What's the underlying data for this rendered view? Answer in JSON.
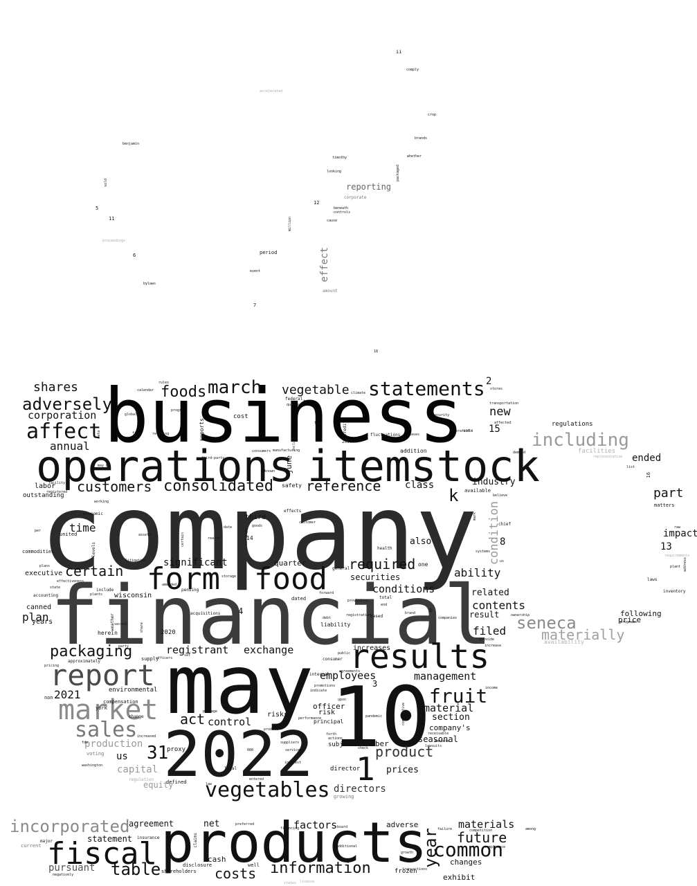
{
  "words": [
    {
      "t": "company",
      "c": "#2b2b2b"
    },
    {
      "t": "business",
      "c": "#050505"
    },
    {
      "t": "financial",
      "c": "#3c3c3c"
    },
    {
      "t": "operations",
      "c": "#111111"
    },
    {
      "t": "itemstock",
      "c": "#111111"
    },
    {
      "t": "may",
      "c": "#111111"
    },
    {
      "t": "2022",
      "c": "#181818"
    },
    {
      "t": "10",
      "c": "#111111"
    },
    {
      "t": "products",
      "c": "#111111"
    },
    {
      "t": "results",
      "c": "#111111"
    },
    {
      "t": "form",
      "c": "#111111"
    },
    {
      "t": "food",
      "c": "#111111"
    },
    {
      "t": "market",
      "c": "#8a8a8a"
    },
    {
      "t": "report",
      "c": "#4a4a4a"
    },
    {
      "t": "fiscal",
      "c": "#111111"
    },
    {
      "t": "vegetables",
      "c": "#111111"
    },
    {
      "t": "statements",
      "c": "#111111"
    },
    {
      "t": "march",
      "c": "#111111"
    },
    {
      "t": "incorporated",
      "c": "#8a8a8a"
    },
    {
      "t": "affect",
      "c": "#111111"
    },
    {
      "t": "adversely",
      "c": "#111111"
    },
    {
      "t": "common",
      "c": "#111111"
    },
    {
      "t": "including",
      "c": "#9a9a9a"
    },
    {
      "t": "fruit",
      "c": "#111111"
    },
    {
      "t": "packaging",
      "c": "#111111"
    },
    {
      "t": "sales",
      "c": "#777777"
    },
    {
      "t": "consolidated",
      "c": "#111111"
    },
    {
      "t": "foods",
      "c": "#111111"
    },
    {
      "t": "customers",
      "c": "#111111"
    },
    {
      "t": "information",
      "c": "#111111"
    },
    {
      "t": "table",
      "c": "#111111"
    },
    {
      "t": "year",
      "c": "#111111"
    },
    {
      "t": "1",
      "c": "#111111"
    },
    {
      "t": "seneca",
      "c": "#8a8a8a"
    },
    {
      "t": "materially",
      "c": "#a0a0a0"
    },
    {
      "t": "vegetable",
      "c": "#111111"
    },
    {
      "t": "shares",
      "c": "#111111"
    },
    {
      "t": "certain",
      "c": "#111111"
    },
    {
      "t": "reference",
      "c": "#111111"
    },
    {
      "t": "product",
      "c": "#333333"
    },
    {
      "t": "31",
      "c": "#111111"
    },
    {
      "t": "k",
      "c": "#111111"
    },
    {
      "t": "costs",
      "c": "#111111"
    },
    {
      "t": "future",
      "c": "#111111"
    },
    {
      "t": "act",
      "c": "#111111"
    },
    {
      "t": "required",
      "c": "#111111"
    },
    {
      "t": "part",
      "c": "#111111"
    },
    {
      "t": "annual",
      "c": "#111111"
    },
    {
      "t": "corporation",
      "c": "#111111"
    },
    {
      "t": "time",
      "c": "#111111"
    },
    {
      "t": "significant",
      "c": "#111111"
    },
    {
      "t": "registrant",
      "c": "#111111"
    },
    {
      "t": "exchange",
      "c": "#111111"
    },
    {
      "t": "control",
      "c": "#111111"
    },
    {
      "t": "factors",
      "c": "#111111"
    },
    {
      "t": "materials",
      "c": "#111111"
    },
    {
      "t": "management",
      "c": "#111111"
    },
    {
      "t": "employees",
      "c": "#111111"
    },
    {
      "t": "material",
      "c": "#111111"
    },
    {
      "t": "conditions",
      "c": "#111111"
    },
    {
      "t": "new",
      "c": "#111111"
    },
    {
      "t": "ended",
      "c": "#111111"
    },
    {
      "t": "impact",
      "c": "#111111"
    },
    {
      "t": "ability",
      "c": "#111111"
    },
    {
      "t": "contents",
      "c": "#111111"
    },
    {
      "t": "filed",
      "c": "#111111"
    },
    {
      "t": "industry",
      "c": "#111111"
    },
    {
      "t": "class",
      "c": "#111111"
    },
    {
      "t": "section",
      "c": "#111111"
    },
    {
      "t": "directors",
      "c": "#333333"
    },
    {
      "t": "plan",
      "c": "#111111"
    },
    {
      "t": "2021",
      "c": "#111111"
    },
    {
      "t": "production",
      "c": "#9a9a9a"
    },
    {
      "t": "capital",
      "c": "#9a9a9a"
    },
    {
      "t": "equity",
      "c": "#9a9a9a"
    },
    {
      "t": "agreement",
      "c": "#111111"
    },
    {
      "t": "pursuant",
      "c": "#555555"
    },
    {
      "t": "statement",
      "c": "#111111"
    },
    {
      "t": "net",
      "c": "#111111"
    },
    {
      "t": "cash",
      "c": "#111111"
    },
    {
      "t": "prices",
      "c": "#111111"
    },
    {
      "t": "seasonal",
      "c": "#111111"
    },
    {
      "t": "company's",
      "c": "#111111"
    },
    {
      "t": "related",
      "c": "#111111"
    },
    {
      "t": "result",
      "c": "#111111"
    },
    {
      "t": "following",
      "c": "#111111"
    },
    {
      "t": "price",
      "c": "#111111"
    },
    {
      "t": "adverse",
      "c": "#111111"
    },
    {
      "t": "changes",
      "c": "#111111"
    },
    {
      "t": "exhibit",
      "c": "#111111"
    },
    {
      "t": "frozen",
      "c": "#111111"
    },
    {
      "t": "condition",
      "c": "#9a9a9a"
    },
    {
      "t": "reporting",
      "c": "#666666"
    },
    {
      "t": "effect",
      "c": "#777777"
    },
    {
      "t": "us",
      "c": "#111111"
    },
    {
      "t": "quarter",
      "c": "#111111"
    },
    {
      "t": "securities",
      "c": "#111111"
    },
    {
      "t": "also",
      "c": "#111111"
    },
    {
      "t": "subject",
      "c": "#111111"
    },
    {
      "t": "number",
      "c": "#111111"
    },
    {
      "t": "officer",
      "c": "#111111"
    },
    {
      "t": "risks",
      "c": "#111111"
    },
    {
      "t": "risk",
      "c": "#111111"
    },
    {
      "t": "increases",
      "c": "#111111"
    },
    {
      "t": "2",
      "c": "#111111"
    },
    {
      "t": "3",
      "c": "#111111"
    },
    {
      "t": "4",
      "c": "#111111"
    },
    {
      "t": "8",
      "c": "#111111"
    },
    {
      "t": "13",
      "c": "#111111"
    },
    {
      "t": "15",
      "c": "#111111"
    },
    {
      "t": "labor",
      "c": "#111111"
    },
    {
      "t": "outstanding",
      "c": "#111111"
    },
    {
      "t": "executive",
      "c": "#111111"
    },
    {
      "t": "wisconsin",
      "c": "#111111"
    },
    {
      "t": "canned",
      "c": "#111111"
    },
    {
      "t": "years",
      "c": "#111111"
    },
    {
      "t": "commodities",
      "c": "#111111"
    },
    {
      "t": "united",
      "c": "#111111"
    },
    {
      "t": "third",
      "c": "#111111"
    },
    {
      "t": "june",
      "c": "#111111"
    },
    {
      "t": "safety",
      "c": "#111111"
    },
    {
      "t": "liability",
      "c": "#111111"
    },
    {
      "t": "dated",
      "c": "#111111"
    },
    {
      "t": "environmental",
      "c": "#111111"
    },
    {
      "t": "compensation",
      "c": "#111111"
    },
    {
      "t": "herein",
      "c": "#111111"
    },
    {
      "t": "2020",
      "c": "#111111"
    },
    {
      "t": "york",
      "c": "#111111"
    },
    {
      "t": "proxy",
      "c": "#111111"
    },
    {
      "t": "shareholders",
      "c": "#111111"
    },
    {
      "t": "defined",
      "c": "#111111"
    },
    {
      "t": "disclosure",
      "c": "#111111"
    },
    {
      "t": "principal",
      "c": "#111111"
    },
    {
      "t": "director",
      "c": "#111111"
    },
    {
      "t": "growing",
      "c": "#777777"
    },
    {
      "t": "regulations",
      "c": "#111111"
    },
    {
      "t": "facilities",
      "c": "#b0b0b0"
    },
    {
      "t": "availability",
      "c": "#b0b0b0"
    },
    {
      "t": "matters",
      "c": "#111111"
    },
    {
      "t": "cost",
      "c": "#111111"
    },
    {
      "t": "addition",
      "c": "#111111"
    },
    {
      "t": "fluctuations",
      "c": "#111111"
    },
    {
      "t": "period",
      "c": "#111111"
    },
    {
      "t": "corporate",
      "c": "#777777"
    },
    {
      "t": "million",
      "c": "#111111"
    },
    {
      "t": "ii",
      "c": "#111111"
    },
    {
      "t": "12",
      "c": "#111111"
    },
    {
      "t": "5",
      "c": "#111111"
    },
    {
      "t": "11",
      "c": "#111111"
    },
    {
      "t": "6",
      "c": "#111111"
    },
    {
      "t": "7",
      "c": "#111111"
    },
    {
      "t": "14",
      "c": "#111111"
    },
    {
      "t": "16",
      "c": "#111111"
    },
    {
      "t": "accelerated",
      "c": "#aaaaaa"
    },
    {
      "t": "benjamin",
      "c": "#111111"
    },
    {
      "t": "timothy",
      "c": "#111111"
    },
    {
      "t": "looking",
      "c": "#111111"
    },
    {
      "t": "brands",
      "c": "#111111"
    },
    {
      "t": "whether",
      "c": "#111111"
    },
    {
      "t": "packaged",
      "c": "#111111"
    },
    {
      "t": "crop",
      "c": "#111111"
    },
    {
      "t": "comply",
      "c": "#111111"
    },
    {
      "t": "sold",
      "c": "#111111"
    },
    {
      "t": "proceedings",
      "c": "#aaaaaa"
    },
    {
      "t": "bylaws",
      "c": "#111111"
    },
    {
      "t": "amount",
      "c": "#777777"
    },
    {
      "t": "beneath",
      "c": "#111111"
    },
    {
      "t": "controls",
      "c": "#111111"
    },
    {
      "t": "cause",
      "c": "#111111"
    },
    {
      "t": "event",
      "c": "#111111"
    },
    {
      "t": "tax",
      "c": "#111111"
    },
    {
      "t": "vote",
      "c": "#111111"
    },
    {
      "t": "federal",
      "c": "#111111"
    },
    {
      "t": "quarterly",
      "c": "#111111"
    },
    {
      "t": "consumers",
      "c": "#111111"
    },
    {
      "t": "credit",
      "c": "#111111"
    },
    {
      "t": "leases",
      "c": "#111111"
    },
    {
      "t": "working",
      "c": "#111111"
    },
    {
      "t": "economic",
      "c": "#111111"
    },
    {
      "t": "effects",
      "c": "#111111"
    },
    {
      "t": "health",
      "c": "#111111"
    },
    {
      "t": "general",
      "c": "#111111"
    },
    {
      "t": "inventory",
      "c": "#111111"
    },
    {
      "t": "laws",
      "c": "#111111"
    },
    {
      "t": "chief",
      "c": "#111111"
    },
    {
      "t": "raw",
      "c": "#111111"
    },
    {
      "t": "available",
      "c": "#111111"
    },
    {
      "t": "one",
      "c": "#111111"
    },
    {
      "t": "b",
      "c": "#111111"
    },
    {
      "t": "brand",
      "c": "#111111"
    },
    {
      "t": "total",
      "c": "#111111"
    },
    {
      "t": "based",
      "c": "#111111"
    },
    {
      "t": "debt",
      "c": "#111111"
    },
    {
      "t": "forward",
      "c": "#111111"
    },
    {
      "t": "acquisitions",
      "c": "#111111"
    },
    {
      "t": "include",
      "c": "#111111"
    },
    {
      "t": "plants",
      "c": "#111111"
    },
    {
      "t": "accounting",
      "c": "#111111"
    },
    {
      "t": "state",
      "c": "#111111"
    },
    {
      "t": "plans",
      "c": "#111111"
    },
    {
      "t": "supply",
      "c": "#111111"
    },
    {
      "t": "approximately",
      "c": "#111111"
    },
    {
      "t": "increased",
      "c": "#111111"
    },
    {
      "t": "regulation",
      "c": "#aaaaaa"
    },
    {
      "t": "voting",
      "c": "#777777"
    },
    {
      "t": "change",
      "c": "#111111"
    },
    {
      "t": "non",
      "c": "#111111"
    },
    {
      "t": "consumer",
      "c": "#111111"
    },
    {
      "t": "internal",
      "c": "#111111"
    },
    {
      "t": "indicate",
      "c": "#111111"
    },
    {
      "t": "income",
      "c": "#111111"
    },
    {
      "t": "insurance",
      "c": "#111111"
    },
    {
      "t": "major",
      "c": "#111111"
    },
    {
      "t": "current",
      "c": "#777777"
    },
    {
      "t": "well",
      "c": "#111111"
    },
    {
      "t": "claims",
      "c": "#111111"
    },
    {
      "t": "additional",
      "c": "#111111"
    },
    {
      "t": "states",
      "c": "#aaaaaa"
    },
    {
      "t": "preferred",
      "c": "#111111"
    },
    {
      "t": "among",
      "c": "#111111"
    },
    {
      "t": "failure",
      "c": "#111111"
    },
    {
      "t": "compliance",
      "c": "#111111"
    },
    {
      "t": "demand",
      "c": "#111111"
    },
    {
      "t": "transportation",
      "c": "#111111"
    },
    {
      "t": "climate",
      "c": "#111111"
    },
    {
      "t": "2007",
      "c": "#111111"
    },
    {
      "t": "end",
      "c": "#111111"
    },
    {
      "t": "security",
      "c": "#111111"
    },
    {
      "t": "operation",
      "c": "#111111"
    },
    {
      "t": "programs",
      "c": "#111111"
    },
    {
      "t": "board",
      "c": "#111111"
    },
    {
      "t": "competition",
      "c": "#111111"
    },
    {
      "t": "reports",
      "c": "#111111"
    },
    {
      "t": "global",
      "c": "#111111"
    },
    {
      "t": "program",
      "c": "#111111"
    },
    {
      "t": "calendar",
      "c": "#111111"
    },
    {
      "t": "rules",
      "c": "#111111"
    },
    {
      "t": "stores",
      "c": "#111111"
    },
    {
      "t": "used",
      "c": "#111111"
    },
    {
      "t": "data",
      "c": "#111111"
    },
    {
      "t": "filer",
      "c": "#111111"
    },
    {
      "t": "relating",
      "c": "#111111"
    },
    {
      "t": "facility",
      "c": "#111111"
    },
    {
      "t": "registered",
      "c": "#111111"
    },
    {
      "t": "per",
      "c": "#111111"
    },
    {
      "t": "mark",
      "c": "#111111"
    },
    {
      "t": "believe",
      "c": "#111111"
    },
    {
      "t": "systems",
      "c": "#111111"
    },
    {
      "t": "affected",
      "c": "#111111"
    },
    {
      "t": "type",
      "c": "#111111"
    },
    {
      "t": "levels",
      "c": "#111111"
    },
    {
      "t": "litigation",
      "c": "#111111"
    },
    {
      "t": "effectiveness",
      "c": "#111111"
    },
    {
      "t": "suppliers",
      "c": "#111111"
    },
    {
      "t": "forth",
      "c": "#111111"
    },
    {
      "t": "actions",
      "c": "#111111"
    },
    {
      "t": "check",
      "c": "#111111"
    },
    {
      "t": "pandemic",
      "c": "#111111"
    },
    {
      "t": "produce",
      "c": "#111111"
    },
    {
      "t": "legal",
      "c": "#111111"
    },
    {
      "t": "package",
      "c": "#111111"
    },
    {
      "t": "agreements",
      "c": "#111111"
    },
    {
      "t": "provisions",
      "c": "#111111"
    },
    {
      "t": "companies",
      "c": "#111111"
    },
    {
      "t": "ownership",
      "c": "#111111"
    },
    {
      "t": "provide",
      "c": "#111111"
    },
    {
      "t": "increase",
      "c": "#111111"
    },
    {
      "t": "transactions",
      "c": "#111111"
    },
    {
      "t": "growth",
      "c": "#111111"
    },
    {
      "t": "receivable",
      "c": "#111111"
    },
    {
      "t": "markets",
      "c": "#111111"
    },
    {
      "t": "lawsuits",
      "c": "#111111"
    },
    {
      "t": "set",
      "c": "#111111"
    },
    {
      "t": "fda",
      "c": "#111111"
    },
    {
      "t": "washington",
      "c": "#111111"
    },
    {
      "t": "pricing",
      "c": "#111111"
    },
    {
      "t": "weather",
      "c": "#111111"
    },
    {
      "t": "second",
      "c": "#111111"
    },
    {
      "t": "amended",
      "c": "#111111"
    },
    {
      "t": "officers",
      "c": "#111111"
    },
    {
      "t": "negatively",
      "c": "#111111"
    },
    {
      "t": "license",
      "c": "#aaaaaa"
    },
    {
      "t": "promotions",
      "c": "#111111"
    },
    {
      "t": "pending",
      "c": "#111111"
    },
    {
      "t": "000",
      "c": "#111111"
    },
    {
      "t": "law",
      "c": "#111111"
    },
    {
      "t": "services",
      "c": "#111111"
    },
    {
      "t": "interest",
      "c": "#111111"
    },
    {
      "t": "list",
      "c": "#111111"
    },
    {
      "t": "representative",
      "c": "#aaaaaa"
    },
    {
      "t": "requirements",
      "c": "#aaaaaa"
    },
    {
      "t": "address",
      "c": "#111111"
    },
    {
      "t": "plant",
      "c": "#111111"
    },
    {
      "t": "known",
      "c": "#111111"
    },
    {
      "t": "includes",
      "c": "#111111"
    },
    {
      "t": "manufacturing",
      "c": "#111111"
    },
    {
      "t": "storage",
      "c": "#111111"
    },
    {
      "t": "share",
      "c": "#111111"
    },
    {
      "t": "earnings",
      "c": "#111111"
    },
    {
      "t": "date",
      "c": "#111111"
    },
    {
      "t": "goods",
      "c": "#111111"
    },
    {
      "t": "customer",
      "c": "#111111"
    },
    {
      "t": "competitive",
      "c": "#111111"
    },
    {
      "t": "performance",
      "c": "#111111"
    },
    {
      "t": "upon",
      "c": "#111111"
    },
    {
      "t": "may be",
      "c": "#111111"
    },
    {
      "t": "public",
      "c": "#111111"
    },
    {
      "t": "party",
      "c": "#111111"
    },
    {
      "t": "certain ",
      "c": "#111111"
    },
    {
      "t": "entered",
      "c": "#111111"
    },
    {
      "t": "registration",
      "c": "#111111"
    },
    {
      "t": "third-party",
      "c": "#111111"
    },
    {
      "t": "financing",
      "c": "#111111"
    },
    {
      "t": "assets",
      "c": "#111111"
    },
    {
      "t": "reason",
      "c": "#111111"
    },
    {
      "t": "j",
      "c": "#111111"
    },
    {
      "t": "us ",
      "c": "#111111"
    },
    {
      "t": "18",
      "c": "#111111"
    },
    {
      "t": "9",
      "c": "#111111"
    },
    {
      "t": "100",
      "c": "#111111"
    }
  ]
}
